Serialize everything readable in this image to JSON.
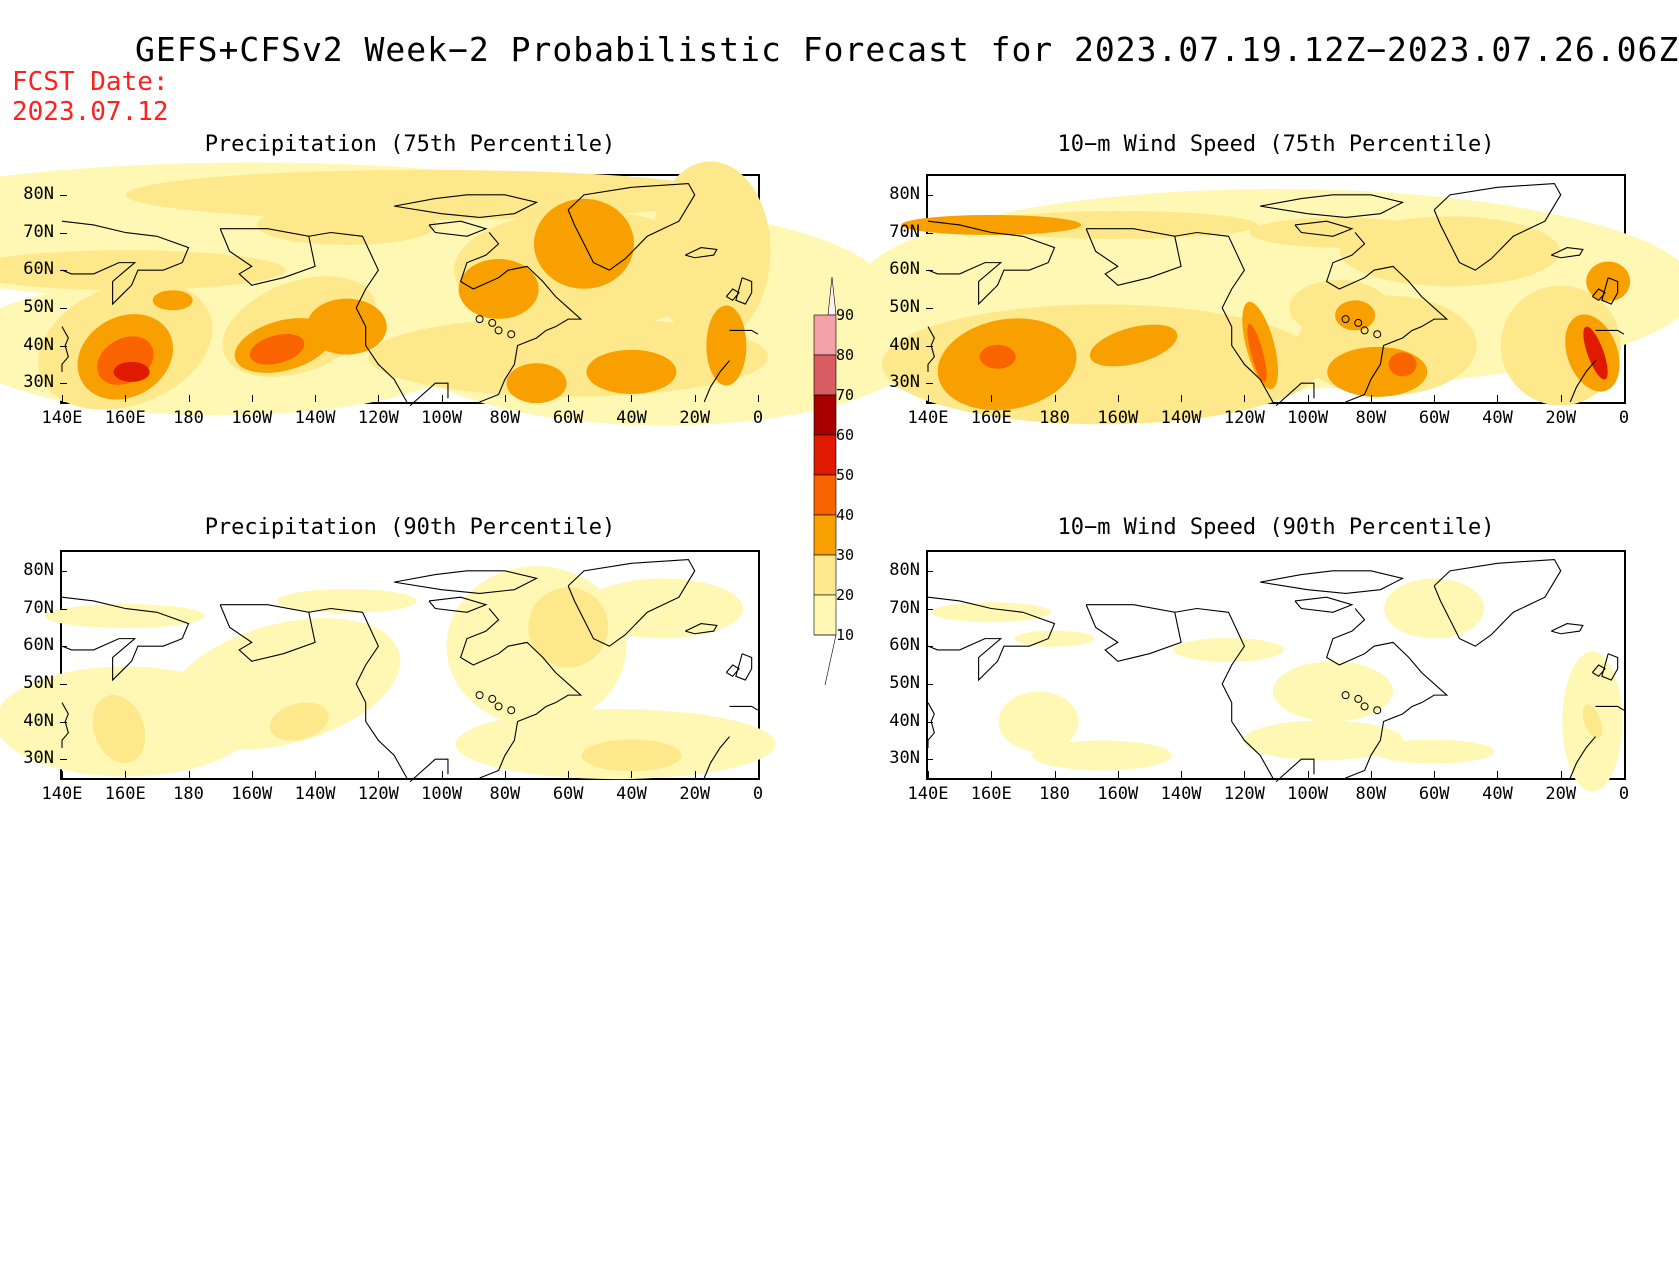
{
  "title": "GEFS+CFSv2 Week−2 Probabilistic Forecast for 2023.07.19.12Z−2023.07.26.06Z",
  "fcst_date": {
    "label": "FCST Date:",
    "value": "2023.07.12"
  },
  "panels": [
    {
      "title": "Precipitation (75th Percentile)",
      "intensity": "high"
    },
    {
      "title": "10−m Wind Speed (75th Percentile)",
      "intensity": "high-wind"
    },
    {
      "title": "Precipitation (90th Percentile)",
      "intensity": "low"
    },
    {
      "title": "10−m Wind Speed (90th Percentile)",
      "intensity": "low-wind"
    }
  ],
  "lat_labels": [
    "80N",
    "70N",
    "60N",
    "50N",
    "40N",
    "30N"
  ],
  "lon_labels": [
    "140E",
    "160E",
    "180",
    "160W",
    "140W",
    "120W",
    "100W",
    "80W",
    "60W",
    "40W",
    "20W",
    "0"
  ],
  "colorbar": {
    "labels": [
      "90",
      "80",
      "70",
      "60",
      "50",
      "40",
      "30",
      "20",
      "10"
    ],
    "colors": [
      "#fff0f0",
      "#f4a0a8",
      "#d85c62",
      "#a80000",
      "#e01a00",
      "#fa6400",
      "#f8a000",
      "#fde88c",
      "#fff8b4"
    ]
  }
}
